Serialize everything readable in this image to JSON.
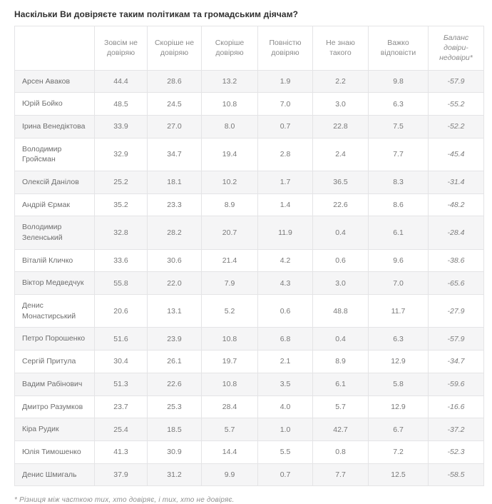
{
  "title": "Наскільки Ви довіряєте таким політикам та громадським діячам?",
  "footnote": "* Різниця між часткою тих, хто довіряє, і тих, хто не довіряє.",
  "colors": {
    "row_stripe": "#f5f5f6",
    "border": "#e4e4e6",
    "title_text": "#2e2e2e",
    "cell_text": "#787878"
  },
  "chart_data": {
    "type": "table",
    "title": "Наскільки Ви довіряєте таким політикам та громадським діячам?",
    "columns": [
      "",
      "Зовсім не довіряю",
      "Скоріше не довіряю",
      "Скоріше довіряю",
      "Повністю довіряю",
      "Не знаю такого",
      "Важко відповісти",
      "Баланс довіри-недовіри*"
    ],
    "rows": [
      {
        "name": "Арсен Аваков",
        "values": [
          "44.4",
          "28.6",
          "13.2",
          "1.9",
          "2.2",
          "9.8",
          "-57.9"
        ]
      },
      {
        "name": "Юрій Бойко",
        "values": [
          "48.5",
          "24.5",
          "10.8",
          "7.0",
          "3.0",
          "6.3",
          "-55.2"
        ]
      },
      {
        "name": "Ірина Венедіктова",
        "values": [
          "33.9",
          "27.0",
          "8.0",
          "0.7",
          "22.8",
          "7.5",
          "-52.2"
        ]
      },
      {
        "name": "Володимир Гройсман",
        "values": [
          "32.9",
          "34.7",
          "19.4",
          "2.8",
          "2.4",
          "7.7",
          "-45.4"
        ]
      },
      {
        "name": "Олексій Данілов",
        "values": [
          "25.2",
          "18.1",
          "10.2",
          "1.7",
          "36.5",
          "8.3",
          "-31.4"
        ]
      },
      {
        "name": "Андрій Єрмак",
        "values": [
          "35.2",
          "23.3",
          "8.9",
          "1.4",
          "22.6",
          "8.6",
          "-48.2"
        ]
      },
      {
        "name": "Володимир Зеленський",
        "values": [
          "32.8",
          "28.2",
          "20.7",
          "11.9",
          "0.4",
          "6.1",
          "-28.4"
        ]
      },
      {
        "name": "Віталій Кличко",
        "values": [
          "33.6",
          "30.6",
          "21.4",
          "4.2",
          "0.6",
          "9.6",
          "-38.6"
        ]
      },
      {
        "name": "Віктор Медведчук",
        "values": [
          "55.8",
          "22.0",
          "7.9",
          "4.3",
          "3.0",
          "7.0",
          "-65.6"
        ]
      },
      {
        "name": "Денис Монастирський",
        "values": [
          "20.6",
          "13.1",
          "5.2",
          "0.6",
          "48.8",
          "11.7",
          "-27.9"
        ]
      },
      {
        "name": "Петро Порошенко",
        "values": [
          "51.6",
          "23.9",
          "10.8",
          "6.8",
          "0.4",
          "6.3",
          "-57.9"
        ]
      },
      {
        "name": "Сергій Притула",
        "values": [
          "30.4",
          "26.1",
          "19.7",
          "2.1",
          "8.9",
          "12.9",
          "-34.7"
        ]
      },
      {
        "name": "Вадим Рабінович",
        "values": [
          "51.3",
          "22.6",
          "10.8",
          "3.5",
          "6.1",
          "5.8",
          "-59.6"
        ]
      },
      {
        "name": "Дмитро Разумков",
        "values": [
          "23.7",
          "25.3",
          "28.4",
          "4.0",
          "5.7",
          "12.9",
          "-16.6"
        ]
      },
      {
        "name": "Кіра Рудик",
        "values": [
          "25.4",
          "18.5",
          "5.7",
          "1.0",
          "42.7",
          "6.7",
          "-37.2"
        ]
      },
      {
        "name": "Юлія Тимошенко",
        "values": [
          "41.3",
          "30.9",
          "14.4",
          "5.5",
          "0.8",
          "7.2",
          "-52.3"
        ]
      },
      {
        "name": "Денис Шмигаль",
        "values": [
          "37.9",
          "31.2",
          "9.9",
          "0.7",
          "7.7",
          "12.5",
          "-58.5"
        ]
      }
    ]
  }
}
